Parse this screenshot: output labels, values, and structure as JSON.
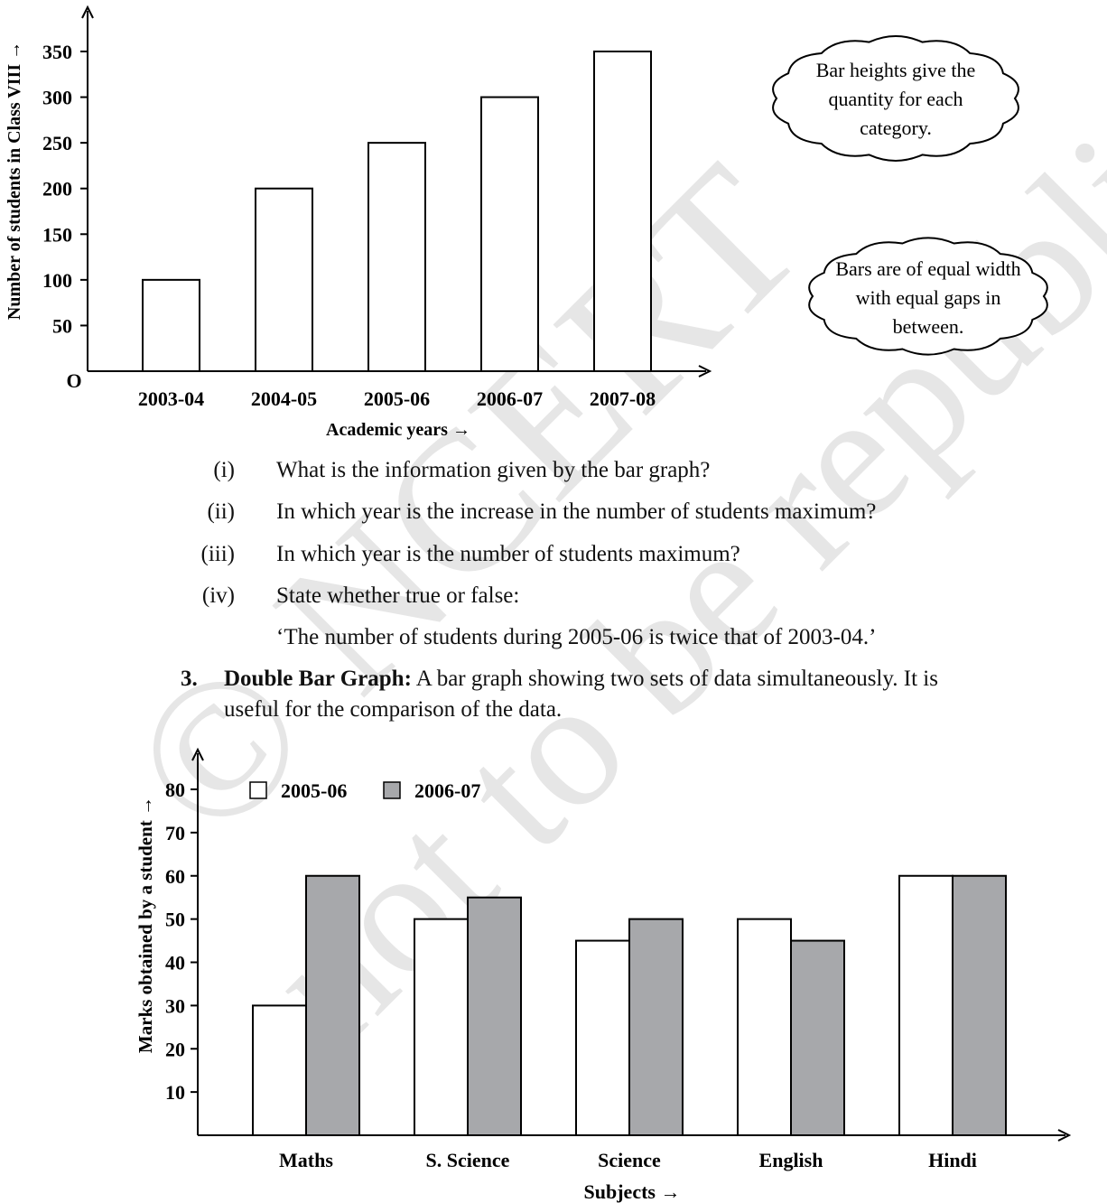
{
  "watermark": {
    "symbol": "©",
    "line1": "NCERT",
    "line2": "not to be republished"
  },
  "chart_data": [
    {
      "type": "bar",
      "categories": [
        "2003-04",
        "2004-05",
        "2005-06",
        "2006-07",
        "2007-08"
      ],
      "values": [
        100,
        200,
        250,
        300,
        350
      ],
      "xlabel": "Academic years →",
      "ylabel": "Number of students in Class VIII →",
      "ylim": [
        0,
        350
      ],
      "yticks": [
        50,
        100,
        150,
        200,
        250,
        300,
        350
      ],
      "origin_label": "O",
      "bar_color": "#ffffff",
      "grid": false,
      "annotations": [
        "Bar heights give the quantity for each category.",
        "Bars are of equal width with equal gaps in between."
      ]
    },
    {
      "type": "bar",
      "categories": [
        "Maths",
        "S. Science",
        "Science",
        "English",
        "Hindi"
      ],
      "series": [
        {
          "name": "2005-06",
          "values": [
            30,
            50,
            45,
            50,
            60
          ],
          "color": "#ffffff"
        },
        {
          "name": "2006-07",
          "values": [
            60,
            55,
            50,
            45,
            60
          ],
          "color": "#a7a8ab"
        }
      ],
      "xlabel": "Subjects →",
      "ylabel": "Marks obtained by a student →",
      "ylim": [
        0,
        80
      ],
      "yticks": [
        10,
        20,
        30,
        40,
        50,
        60,
        70,
        80
      ],
      "legend": "top-left",
      "grid": false
    }
  ],
  "bubbles": [
    {
      "lines": [
        "Bar heights give the",
        "quantity for each",
        "category."
      ]
    },
    {
      "lines": [
        "Bars are of equal width",
        "with equal gaps in",
        "between."
      ]
    }
  ],
  "questions": [
    {
      "num": "(i)",
      "text": "What is the information given by the bar graph?"
    },
    {
      "num": "(ii)",
      "text": "In which year is the increase in the number of students maximum?"
    },
    {
      "num": "(iii)",
      "text": "In which year is the number of students maximum?"
    },
    {
      "num": "(iv)",
      "text": "State whether true or false:"
    }
  ],
  "statement": "‘The number of students during 2005-06 is twice that of 2003-04.’",
  "section3": {
    "number": "3.",
    "heading": "Double Bar Graph:",
    "text_line1": " A bar graph showing two sets of data simultaneously. It is",
    "text_line2": "useful for the comparison of the data."
  }
}
